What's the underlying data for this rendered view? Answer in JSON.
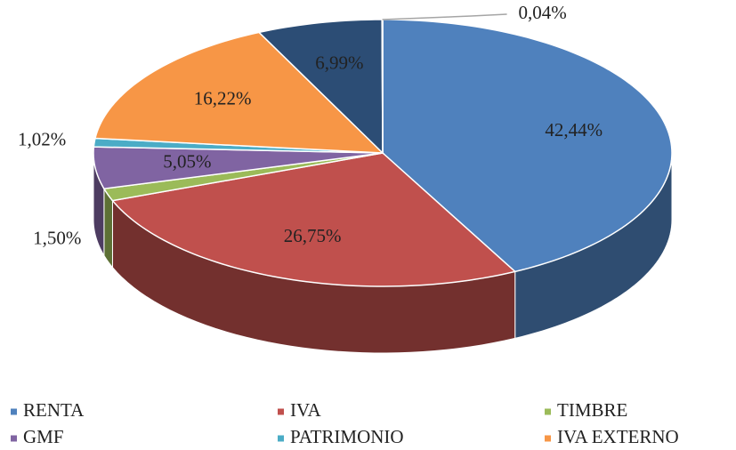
{
  "chart_data": {
    "type": "pie3d",
    "categories": [
      "RENTA",
      "IVA",
      "TIMBRE",
      "GMF",
      "PATRIMONIO",
      "IVA EXTERNO",
      null,
      null
    ],
    "values": [
      42.44,
      26.75,
      1.5,
      5.05,
      1.02,
      16.22,
      6.99,
      0.04
    ],
    "value_labels": [
      "42,44%",
      "26,75%",
      "1,50%",
      "5,05%",
      "1,02%",
      "16,22%",
      "6,99%",
      "0,04%"
    ],
    "colors": [
      "#4f81bd",
      "#c0504d",
      "#9bbb59",
      "#8064a2",
      "#4bacc6",
      "#f79646",
      "#2c4d75",
      "#a5a5a5"
    ],
    "legend": "bottom"
  }
}
